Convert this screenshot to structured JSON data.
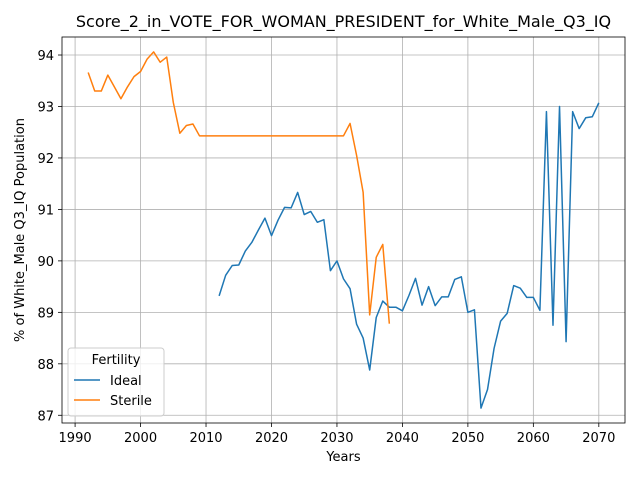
{
  "chart_data": {
    "type": "line",
    "title": "Score_2_in_VOTE_FOR_WOMAN_PRESIDENT_for_White_Male_Q3_IQ",
    "xlabel": "Years",
    "ylabel": "% of White_Male Q3_IQ Population",
    "xlim": [
      1988,
      2074
    ],
    "ylim": [
      86.85,
      94.35
    ],
    "xticks": [
      1990,
      2000,
      2010,
      2020,
      2030,
      2040,
      2050,
      2060,
      2070
    ],
    "yticks": [
      87,
      88,
      89,
      90,
      91,
      92,
      93,
      94
    ],
    "grid": true,
    "legend": {
      "title": "Fertility",
      "position": "lower-left"
    },
    "series": [
      {
        "name": "Ideal",
        "color": "#1f77b4",
        "x": [
          2012,
          2013,
          2014,
          2015,
          2016,
          2017,
          2018,
          2019,
          2020,
          2021,
          2022,
          2023,
          2024,
          2025,
          2026,
          2027,
          2028,
          2029,
          2030,
          2031,
          2032,
          2033,
          2034,
          2035,
          2036,
          2037,
          2038,
          2039,
          2040,
          2041,
          2042,
          2043,
          2044,
          2045,
          2046,
          2047,
          2048,
          2049,
          2050,
          2051,
          2052,
          2053,
          2054,
          2055,
          2056,
          2057,
          2058,
          2059,
          2060,
          2061,
          2062,
          2063,
          2064,
          2065,
          2066,
          2067,
          2068,
          2069,
          2070
        ],
        "y": [
          89.32,
          89.72,
          89.91,
          89.92,
          90.19,
          90.36,
          90.6,
          90.83,
          90.49,
          90.79,
          91.04,
          91.03,
          91.33,
          90.9,
          90.96,
          90.75,
          90.8,
          89.81,
          90.0,
          89.65,
          89.46,
          88.77,
          88.5,
          87.88,
          88.9,
          89.22,
          89.1,
          89.1,
          89.03,
          89.33,
          89.66,
          89.14,
          89.5,
          89.13,
          89.3,
          89.3,
          89.64,
          89.69,
          89.0,
          89.05,
          87.14,
          87.5,
          88.3,
          88.83,
          88.98,
          89.52,
          89.47,
          89.29,
          89.29,
          89.04,
          92.9,
          88.75,
          93.0,
          88.43,
          92.9,
          92.57,
          92.78,
          92.8,
          93.07
        ]
      },
      {
        "name": "Sterile",
        "color": "#ff7f0e",
        "x": [
          1992,
          1993,
          1994,
          1995,
          1996,
          1997,
          1998,
          1999,
          2000,
          2001,
          2002,
          2003,
          2004,
          2005,
          2006,
          2007,
          2008,
          2009,
          2010,
          2011,
          2012,
          2013,
          2014,
          2015,
          2016,
          2017,
          2018,
          2019,
          2020,
          2021,
          2022,
          2023,
          2024,
          2025,
          2026,
          2027,
          2028,
          2029,
          2030,
          2031,
          2032,
          2033,
          2034,
          2035,
          2036,
          2037,
          2038
        ],
        "y": [
          93.66,
          93.3,
          93.3,
          93.61,
          93.38,
          93.15,
          93.38,
          93.58,
          93.68,
          93.92,
          94.06,
          93.86,
          93.96,
          93.08,
          92.48,
          92.63,
          92.66,
          92.43,
          92.43,
          92.43,
          92.43,
          92.43,
          92.43,
          92.43,
          92.43,
          92.43,
          92.43,
          92.43,
          92.43,
          92.43,
          92.43,
          92.43,
          92.43,
          92.43,
          92.43,
          92.43,
          92.43,
          92.43,
          92.43,
          92.43,
          92.67,
          92.05,
          91.33,
          88.95,
          90.07,
          90.32,
          88.78
        ]
      }
    ]
  }
}
